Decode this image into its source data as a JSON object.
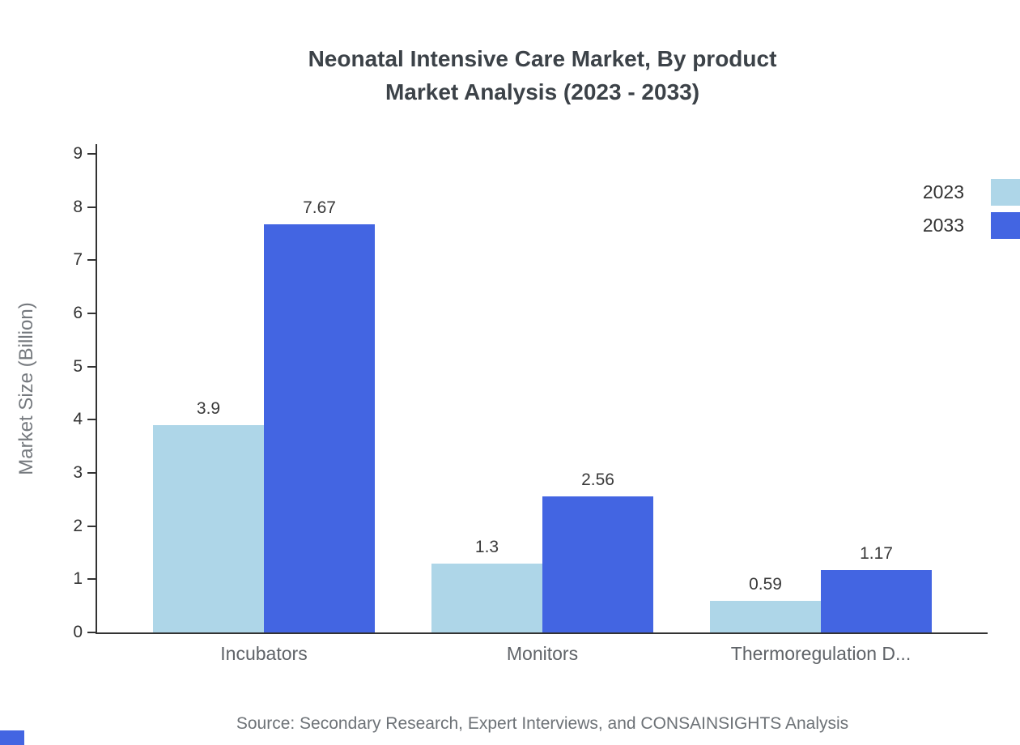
{
  "title": {
    "line1": "Neonatal Intensive Care Market, By product",
    "line2": "Market Analysis (2023 - 2033)"
  },
  "chart_data": {
    "type": "bar",
    "categories": [
      "Incubators",
      "Monitors",
      "Thermoregulation D..."
    ],
    "series": [
      {
        "name": "2023",
        "color": "#aed6e8",
        "values": [
          3.9,
          1.3,
          0.59
        ]
      },
      {
        "name": "2033",
        "color": "#4365e2",
        "values": [
          7.67,
          2.56,
          1.17
        ]
      }
    ],
    "title": "Neonatal Intensive Care Market, By product Market Analysis (2023 - 2033)",
    "xlabel": "",
    "ylabel": "Market Size (Billion)",
    "ylim": [
      0,
      9
    ],
    "ytick_step": 1,
    "grid": false,
    "legend_position": "top-right"
  },
  "source": "Source: Secondary Research, Expert Interviews, and CONSAINSIGHTS Analysis"
}
